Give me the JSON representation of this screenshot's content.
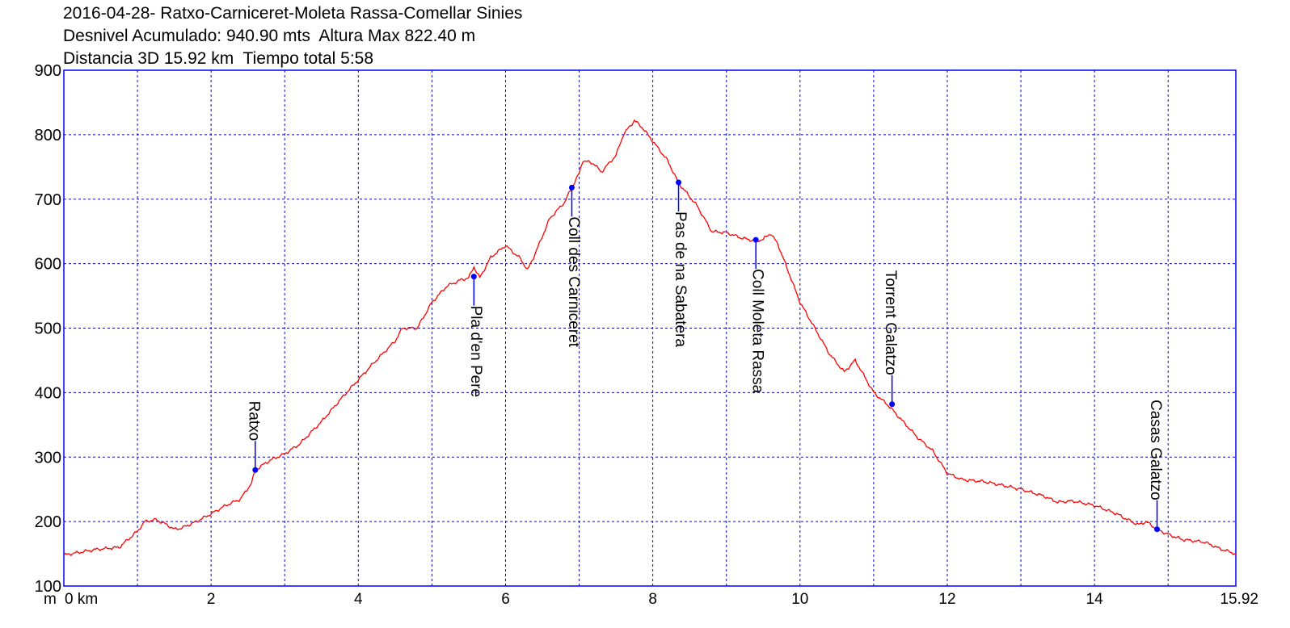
{
  "chart_data": {
    "type": "line",
    "title_lines": [
      "2016-04-28- Ratxo-Carniceret-Moleta Rassa-Comellar Sinies",
      "Desnivel Acumulado: 940.90 mts  Altura Max 822.40 m",
      "Distancia 3D 15.92 km  Tiempo total 5:58"
    ],
    "y_unit": "m",
    "x_unit": "km",
    "ylim": [
      100,
      900
    ],
    "xlim": [
      0,
      15.92
    ],
    "y_ticks": [
      "100",
      "200",
      "300",
      "400",
      "500",
      "600",
      "700",
      "800",
      "900"
    ],
    "x_ticks": [
      "0 km",
      "2",
      "4",
      "6",
      "8",
      "10",
      "12",
      "14",
      "15.92"
    ],
    "x_tick_values": [
      0,
      2,
      4,
      6,
      8,
      10,
      12,
      14,
      15.92
    ],
    "grid": true,
    "line_color": "#ff0000",
    "axis_color": "#0000ff",
    "marker_color": "#0000ff",
    "series": [
      {
        "x": [
          0,
          0.45,
          0.75,
          1.0,
          1.1,
          1.25,
          1.4,
          1.5,
          1.6,
          1.8,
          2.0,
          2.2,
          2.4,
          2.55,
          2.6,
          2.8,
          3.0,
          3.2,
          3.5,
          3.8,
          4.0,
          4.2,
          4.5,
          4.6,
          4.8,
          5.0,
          5.2,
          5.4,
          5.5,
          5.57,
          5.65,
          5.8,
          6.0,
          6.2,
          6.3,
          6.4,
          6.6,
          6.8,
          6.9,
          7.0,
          7.05,
          7.2,
          7.3,
          7.5,
          7.6,
          7.75,
          7.85,
          8.0,
          8.2,
          8.35,
          8.6,
          8.8,
          9.0,
          9.2,
          9.4,
          9.5,
          9.6,
          9.7,
          9.8,
          10.0,
          10.2,
          10.4,
          10.6,
          10.75,
          10.8,
          11.0,
          11.2,
          11.4,
          11.6,
          11.8,
          12.0,
          12.2,
          12.5,
          12.8,
          13.0,
          13.3,
          13.5,
          13.7,
          14.0,
          14.3,
          14.5,
          14.6,
          14.7,
          14.85,
          15.0,
          15.2,
          15.5,
          15.7,
          15.92
        ],
        "y": [
          148,
          157,
          160,
          185,
          200,
          203,
          195,
          188,
          190,
          200,
          212,
          225,
          235,
          260,
          280,
          295,
          305,
          320,
          355,
          395,
          420,
          445,
          480,
          500,
          500,
          540,
          565,
          575,
          578,
          595,
          578,
          610,
          628,
          608,
          590,
          615,
          670,
          695,
          718,
          740,
          760,
          755,
          742,
          768,
          800,
          822,
          812,
          790,
          760,
          725,
          690,
          650,
          648,
          640,
          635,
          638,
          647,
          630,
          600,
          540,
          500,
          460,
          432,
          450,
          440,
          400,
          380,
          355,
          330,
          310,
          275,
          265,
          262,
          255,
          250,
          240,
          230,
          232,
          225,
          212,
          200,
          195,
          200,
          188,
          180,
          172,
          168,
          158,
          150
        ]
      }
    ],
    "annotations": [
      {
        "label": "Ratxo",
        "x": 2.6,
        "y": 280,
        "side": "above"
      },
      {
        "label": "Pla d'en Pere",
        "x": 5.57,
        "y": 580,
        "side": "below"
      },
      {
        "label": "Coll des Carniceret",
        "x": 6.9,
        "y": 718,
        "side": "below"
      },
      {
        "label": "Pas de na Sabatera",
        "x": 8.35,
        "y": 726,
        "side": "below"
      },
      {
        "label": "Coll Moleta Rassa",
        "x": 9.4,
        "y": 637,
        "side": "below"
      },
      {
        "label": "Torrent Galatzo",
        "x": 11.25,
        "y": 382,
        "side": "above"
      },
      {
        "label": "Casas Galatzo",
        "x": 14.85,
        "y": 188,
        "side": "above"
      }
    ]
  }
}
